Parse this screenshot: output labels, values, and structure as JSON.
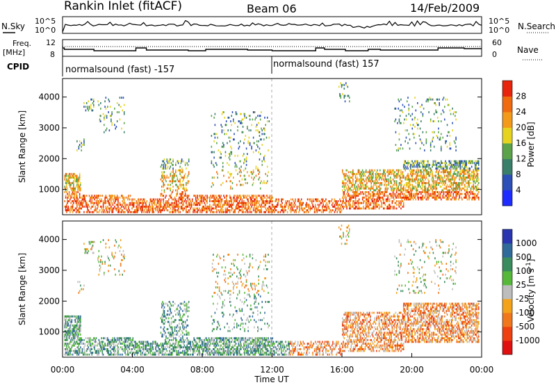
{
  "header": {
    "station": "Rankin Inlet (fitACF)",
    "beam": "Beam 06",
    "date": "14/Feb/2009"
  },
  "noise_panel": {
    "left_label": "N.Sky",
    "right_label": "N.Search",
    "left_ticks": [
      "10^5",
      "10^0"
    ],
    "right_ticks": [
      "10^5",
      "10^0"
    ]
  },
  "freq_panel": {
    "left_label_1": "Freq.",
    "left_label_2": "[MHz]",
    "right_label": "Nave",
    "left_ticks": [
      "12",
      "8"
    ],
    "right_ticks": [
      "60",
      "0"
    ]
  },
  "cpid": {
    "label": "CPID",
    "programs": [
      {
        "name": "normalsound (fast) -157",
        "start_hour": 0
      },
      {
        "name": "normalsound (fast) 157",
        "start_hour": 12
      }
    ]
  },
  "chart_data": [
    {
      "type": "heatmap",
      "name": "power",
      "ylabel": "Slant Range [km]",
      "yticks": [
        1000,
        2000,
        3000,
        4000
      ],
      "ylim": [
        180,
        4600
      ],
      "xlim": [
        0,
        24
      ],
      "colorbar": {
        "label": "Power [dB]",
        "ticks": [
          4,
          8,
          12,
          16,
          20,
          24,
          28
        ],
        "colors": [
          "#1f2cff",
          "#2c4fb8",
          "#3a7f6a",
          "#5aa34a",
          "#e6d31f",
          "#f39a1a",
          "#f06a10",
          "#e8240c"
        ]
      }
    },
    {
      "type": "heatmap",
      "name": "velocity",
      "ylabel": "Slant Range [km]",
      "xlabel": "Time UT",
      "yticks": [
        1000,
        2000,
        3000,
        4000
      ],
      "xticks": [
        "00:00",
        "04:00",
        "08:00",
        "12:00",
        "16:00",
        "20:00",
        "00:00"
      ],
      "ylim": [
        180,
        4600
      ],
      "xlim": [
        0,
        24
      ],
      "colorbar": {
        "label": "Velocity [m s^-1]",
        "ticks": [
          "1000",
          "500",
          "100",
          "25",
          "-25",
          "-100",
          "-500",
          "-1000"
        ],
        "colors": [
          "#2a36b0",
          "#2f6a9a",
          "#3a8c5e",
          "#55b83a",
          "#bdbdbd",
          "#f3a21a",
          "#f0771c",
          "#ee4010",
          "#e01010"
        ]
      }
    }
  ]
}
